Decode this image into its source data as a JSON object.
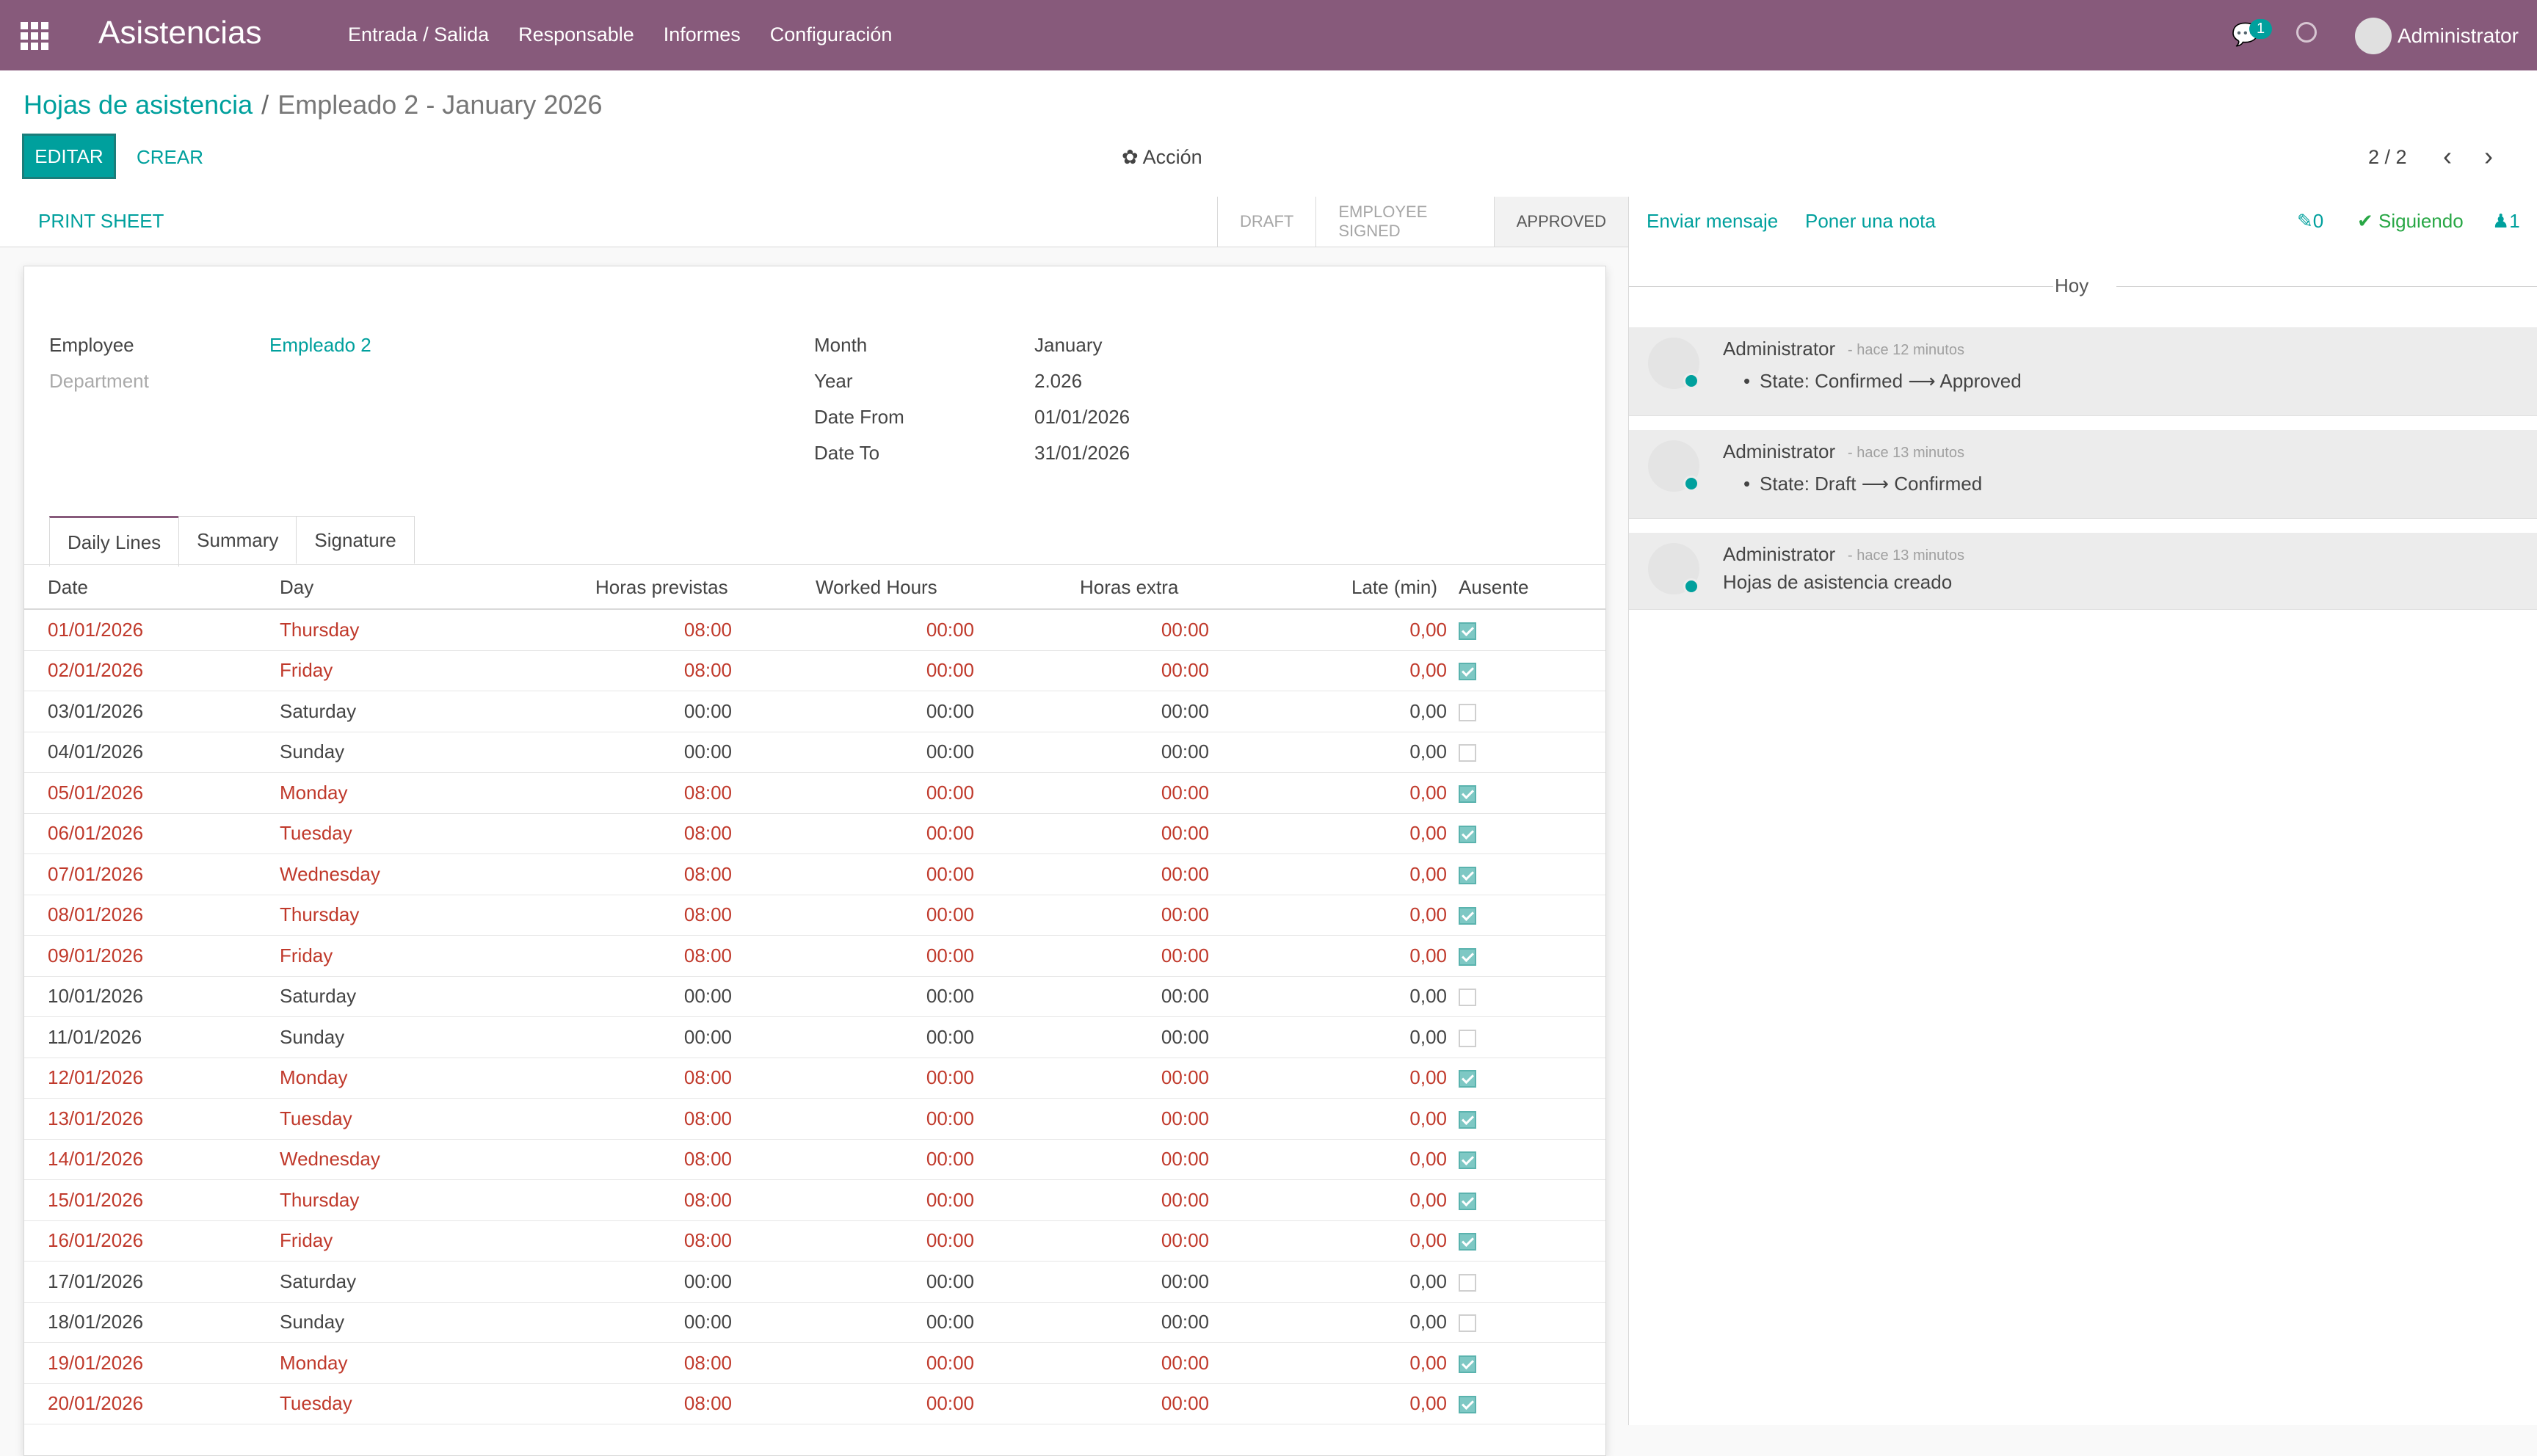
{
  "navbar": {
    "app_title": "Asistencias",
    "menu": [
      "Entrada / Salida",
      "Responsable",
      "Informes",
      "Configuración"
    ],
    "chat_badge": "1",
    "user": "Administrator"
  },
  "breadcrumb": {
    "parent": "Hojas de asistencia",
    "separator": "/",
    "current": "Empleado 2 - January 2026"
  },
  "buttons": {
    "edit": "EDITAR",
    "create": "CREAR",
    "action": "✿ Acción"
  },
  "pager": {
    "value": "2 / 2",
    "prev": "‹",
    "next": "›"
  },
  "statusbar": {
    "print": "PRINT SHEET",
    "stages": [
      "DRAFT",
      "EMPLOYEE SIGNED",
      "APPROVED"
    ],
    "active_stage": "APPROVED"
  },
  "form": {
    "employee_label": "Employee",
    "employee_value": "Empleado 2",
    "department_label": "Department",
    "month_label": "Month",
    "month_value": "January",
    "year_label": "Year",
    "year_value": "2.026",
    "date_from_label": "Date From",
    "date_from_value": "01/01/2026",
    "date_to_label": "Date To",
    "date_to_value": "31/01/2026"
  },
  "tabs": [
    "Daily Lines",
    "Summary",
    "Signature"
  ],
  "table": {
    "headers": [
      "Date",
      "Day",
      "Horas previstas",
      "Worked Hours",
      "Horas extra",
      "Late (min)",
      "Ausente"
    ],
    "rows": [
      {
        "date": "01/01/2026",
        "day": "Thursday",
        "planned": "08:00",
        "worked": "00:00",
        "extra": "00:00",
        "late": "0,00",
        "absent": true
      },
      {
        "date": "02/01/2026",
        "day": "Friday",
        "planned": "08:00",
        "worked": "00:00",
        "extra": "00:00",
        "late": "0,00",
        "absent": true
      },
      {
        "date": "03/01/2026",
        "day": "Saturday",
        "planned": "00:00",
        "worked": "00:00",
        "extra": "00:00",
        "late": "0,00",
        "absent": false
      },
      {
        "date": "04/01/2026",
        "day": "Sunday",
        "planned": "00:00",
        "worked": "00:00",
        "extra": "00:00",
        "late": "0,00",
        "absent": false
      },
      {
        "date": "05/01/2026",
        "day": "Monday",
        "planned": "08:00",
        "worked": "00:00",
        "extra": "00:00",
        "late": "0,00",
        "absent": true
      },
      {
        "date": "06/01/2026",
        "day": "Tuesday",
        "planned": "08:00",
        "worked": "00:00",
        "extra": "00:00",
        "late": "0,00",
        "absent": true
      },
      {
        "date": "07/01/2026",
        "day": "Wednesday",
        "planned": "08:00",
        "worked": "00:00",
        "extra": "00:00",
        "late": "0,00",
        "absent": true
      },
      {
        "date": "08/01/2026",
        "day": "Thursday",
        "planned": "08:00",
        "worked": "00:00",
        "extra": "00:00",
        "late": "0,00",
        "absent": true
      },
      {
        "date": "09/01/2026",
        "day": "Friday",
        "planned": "08:00",
        "worked": "00:00",
        "extra": "00:00",
        "late": "0,00",
        "absent": true
      },
      {
        "date": "10/01/2026",
        "day": "Saturday",
        "planned": "00:00",
        "worked": "00:00",
        "extra": "00:00",
        "late": "0,00",
        "absent": false
      },
      {
        "date": "11/01/2026",
        "day": "Sunday",
        "planned": "00:00",
        "worked": "00:00",
        "extra": "00:00",
        "late": "0,00",
        "absent": false
      },
      {
        "date": "12/01/2026",
        "day": "Monday",
        "planned": "08:00",
        "worked": "00:00",
        "extra": "00:00",
        "late": "0,00",
        "absent": true
      },
      {
        "date": "13/01/2026",
        "day": "Tuesday",
        "planned": "08:00",
        "worked": "00:00",
        "extra": "00:00",
        "late": "0,00",
        "absent": true
      },
      {
        "date": "14/01/2026",
        "day": "Wednesday",
        "planned": "08:00",
        "worked": "00:00",
        "extra": "00:00",
        "late": "0,00",
        "absent": true
      },
      {
        "date": "15/01/2026",
        "day": "Thursday",
        "planned": "08:00",
        "worked": "00:00",
        "extra": "00:00",
        "late": "0,00",
        "absent": true
      },
      {
        "date": "16/01/2026",
        "day": "Friday",
        "planned": "08:00",
        "worked": "00:00",
        "extra": "00:00",
        "late": "0,00",
        "absent": true
      },
      {
        "date": "17/01/2026",
        "day": "Saturday",
        "planned": "00:00",
        "worked": "00:00",
        "extra": "00:00",
        "late": "0,00",
        "absent": false
      },
      {
        "date": "18/01/2026",
        "day": "Sunday",
        "planned": "00:00",
        "worked": "00:00",
        "extra": "00:00",
        "late": "0,00",
        "absent": false
      },
      {
        "date": "19/01/2026",
        "day": "Monday",
        "planned": "08:00",
        "worked": "00:00",
        "extra": "00:00",
        "late": "0,00",
        "absent": true
      },
      {
        "date": "20/01/2026",
        "day": "Tuesday",
        "planned": "08:00",
        "worked": "00:00",
        "extra": "00:00",
        "late": "0,00",
        "absent": true
      }
    ]
  },
  "chatter": {
    "send_message": "Enviar mensaje",
    "log_note": "Poner una nota",
    "attachments": "✎0",
    "following": "✔ Siguiendo",
    "followers": "♟1",
    "today": "Hoy",
    "messages": [
      {
        "author": "Administrator",
        "when": "- hace 12 minutos",
        "text": "State: Confirmed ⟶ Approved",
        "bullet": true
      },
      {
        "author": "Administrator",
        "when": "- hace 13 minutos",
        "text": "State: Draft ⟶ Confirmed",
        "bullet": true
      },
      {
        "author": "Administrator",
        "when": "- hace 13 minutos",
        "text": "Hojas de asistencia creado",
        "bullet": false
      }
    ]
  },
  "colors": {
    "navbar": "#875a7b",
    "accent": "#00a09d",
    "absent_row_text": "#c0392b"
  }
}
